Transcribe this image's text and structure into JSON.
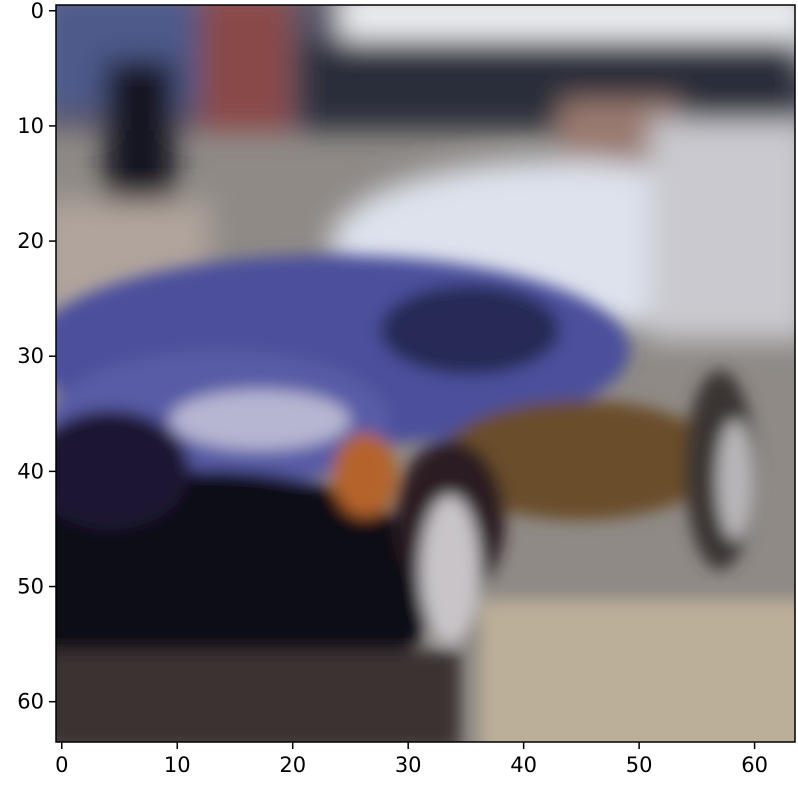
{
  "figure": {
    "description_kind": "blurry upscaled photo of a blue car shown as an image plot",
    "colors": {
      "axes_frame": "#000000",
      "background": "#ffffff",
      "car_body": "#4a4fa0",
      "windshield": "#dfe4ef",
      "road": "#b9ad98",
      "shadow": "#0d0a14",
      "orange_light": "#b5642a"
    }
  },
  "chart_data": {
    "type": "heatmap",
    "title": "",
    "xlabel": "",
    "ylabel": "",
    "xlim": [
      -0.5,
      63.5
    ],
    "ylim": [
      63.5,
      -0.5
    ],
    "x_ticks": [
      0,
      10,
      20,
      30,
      40,
      50,
      60
    ],
    "y_ticks": [
      0,
      10,
      20,
      30,
      40,
      50,
      60
    ],
    "x_tick_labels": [
      "0",
      "10",
      "20",
      "30",
      "40",
      "50",
      "60"
    ],
    "y_tick_labels": [
      "0",
      "10",
      "20",
      "30",
      "40",
      "50",
      "60"
    ],
    "image_resolution": [
      64,
      64
    ],
    "grid": false,
    "legend": "none"
  }
}
